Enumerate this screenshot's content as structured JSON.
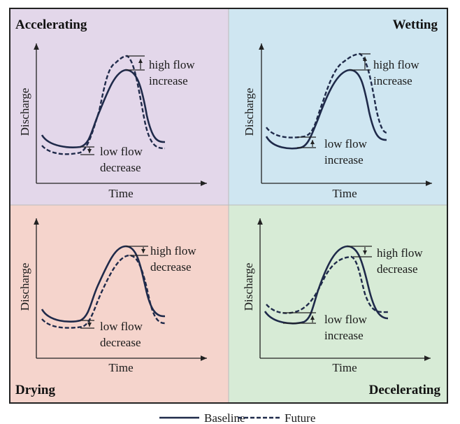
{
  "colors": {
    "accelerating": "#e3d7ea",
    "wetting": "#cfe6f1",
    "drying": "#f5d4cc",
    "decelerating": "#d7ebd6",
    "line": "#1f2a4a"
  },
  "axis": {
    "y": "Discharge",
    "x": "Time"
  },
  "panels": [
    {
      "title": "Accelerating",
      "high_1": "high flow",
      "high_2": "increase",
      "low_1": "low flow",
      "low_2": "decrease"
    },
    {
      "title": "Wetting",
      "high_1": "high flow",
      "high_2": "increase",
      "low_1": "low flow",
      "low_2": "increase"
    },
    {
      "title": "Drying",
      "high_1": "high flow",
      "high_2": "decrease",
      "low_1": "low flow",
      "low_2": "decrease"
    },
    {
      "title": "Decelerating",
      "high_1": "high flow",
      "high_2": "decrease",
      "low_1": "low flow",
      "low_2": "increase"
    }
  ],
  "legend": {
    "baseline": "Baseline",
    "future": "Future"
  }
}
